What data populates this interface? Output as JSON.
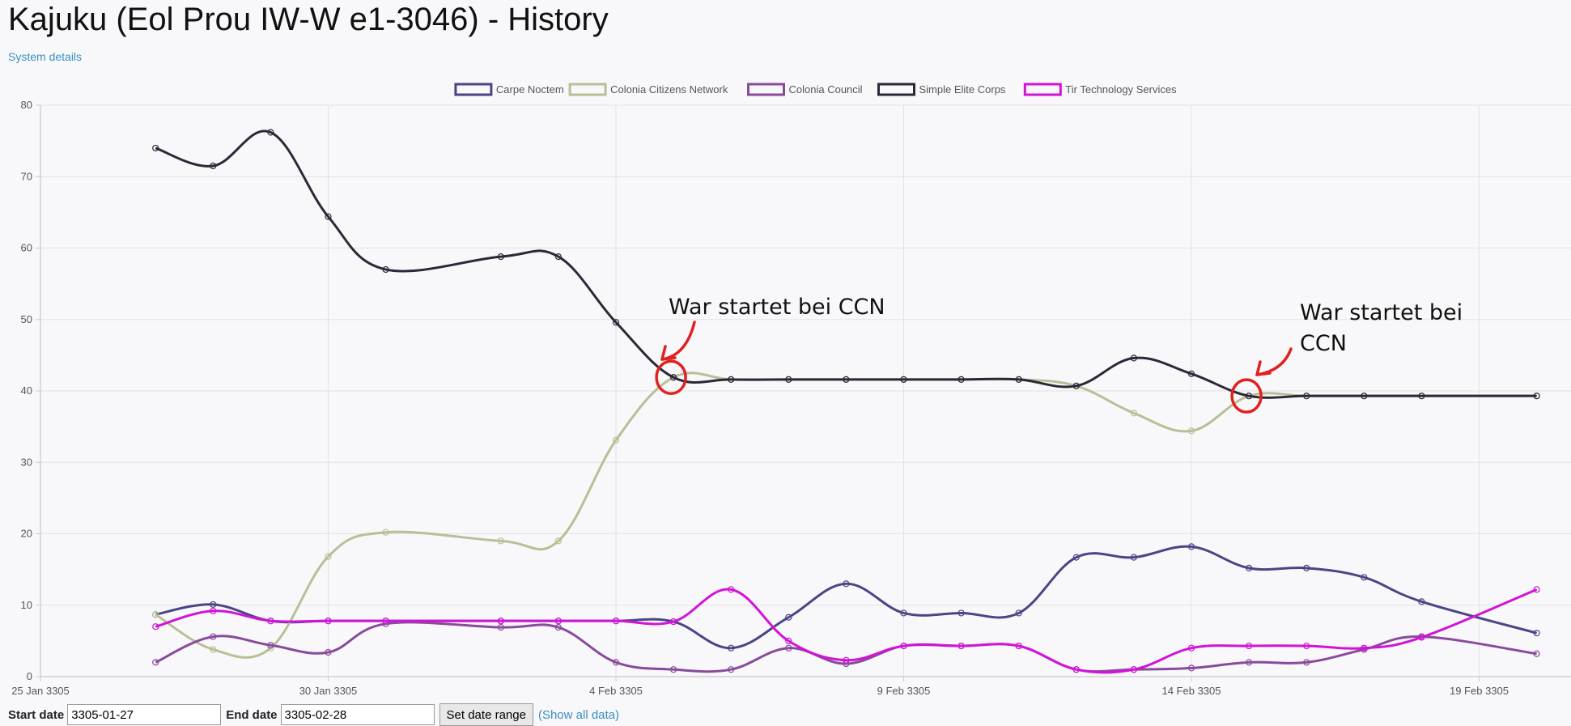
{
  "page": {
    "title": "Kajuku (Eol Prou IW-W e1-3046) - History",
    "system_details_link": "System details"
  },
  "controls": {
    "start_label": "Start date",
    "start_value": "3305-01-27",
    "end_label": "End date",
    "end_value": "3305-02-28",
    "set_button": "Set date range",
    "show_all": "(Show all data)"
  },
  "chart_data": {
    "type": "line",
    "x_axis_type": "date",
    "xlim": [
      "3305-01-25",
      "3305-02-21"
    ],
    "ylim": [
      0,
      80
    ],
    "x_ticks": [
      "25 Jan 3305",
      "30 Jan 3305",
      "4 Feb 3305",
      "9 Feb 3305",
      "14 Feb 3305",
      "19 Feb 3305"
    ],
    "x_tick_dates": [
      "3305-01-25",
      "3305-01-30",
      "3305-02-04",
      "3305-02-09",
      "3305-02-14",
      "3305-02-19"
    ],
    "y_ticks": [
      0,
      10,
      20,
      30,
      40,
      50,
      60,
      70,
      80
    ],
    "grid": true,
    "legend_position": "top",
    "dates": [
      "3305-01-27",
      "3305-01-28",
      "3305-01-29",
      "3305-01-30",
      "3305-01-31",
      "3305-02-02",
      "3305-02-03",
      "3305-02-04",
      "3305-02-05",
      "3305-02-06",
      "3305-02-07",
      "3305-02-08",
      "3305-02-09",
      "3305-02-10",
      "3305-02-11",
      "3305-02-12",
      "3305-02-13",
      "3305-02-14",
      "3305-02-15",
      "3305-02-16",
      "3305-02-17",
      "3305-02-18",
      "3305-02-20"
    ],
    "series": [
      {
        "name": "Carpe Noctem",
        "color": "#4b4585",
        "values": [
          8.7,
          10.1,
          7.8,
          7.8,
          7.8,
          7.8,
          7.8,
          7.8,
          7.7,
          4.0,
          8.3,
          13.0,
          8.9,
          8.9,
          8.9,
          16.7,
          16.7,
          18.2,
          15.2,
          15.2,
          13.9,
          10.5,
          6.1
        ]
      },
      {
        "name": "Colonia Citizens Network",
        "color": "#b8bf96",
        "values": [
          8.7,
          3.8,
          4.0,
          16.8,
          20.2,
          19.0,
          19.0,
          33.1,
          41.9,
          41.6,
          41.6,
          41.6,
          41.6,
          41.6,
          41.6,
          40.7,
          36.9,
          34.4,
          39.3,
          39.3,
          39.3,
          39.3,
          39.3
        ]
      },
      {
        "name": "Colonia Council",
        "color": "#8a4a9c",
        "values": [
          2.0,
          5.6,
          4.4,
          3.4,
          7.4,
          6.9,
          6.9,
          2.0,
          1.0,
          1.0,
          4.0,
          1.8,
          4.3,
          4.3,
          4.3,
          1.0,
          1.0,
          1.2,
          2.0,
          2.0,
          3.8,
          5.6,
          3.2
        ]
      },
      {
        "name": "Simple Elite Corps",
        "color": "#2b2838",
        "values": [
          74.0,
          71.5,
          76.2,
          64.4,
          57.0,
          58.8,
          58.8,
          49.6,
          41.9,
          41.6,
          41.6,
          41.6,
          41.6,
          41.6,
          41.6,
          40.7,
          44.6,
          42.4,
          39.3,
          39.3,
          39.3,
          39.3,
          39.3
        ]
      },
      {
        "name": "Tir Technology Services",
        "color": "#d114d6",
        "values": [
          7.0,
          9.2,
          7.8,
          7.8,
          7.8,
          7.8,
          7.8,
          7.8,
          7.7,
          12.2,
          5.0,
          2.3,
          4.3,
          4.3,
          4.3,
          1.0,
          1.0,
          4.0,
          4.3,
          4.3,
          4.0,
          5.5,
          12.2
        ]
      }
    ],
    "annotations": [
      {
        "text": "War startet bei CCN",
        "date": "3305-02-05",
        "value": 41.9
      },
      {
        "text": "War startet bei CCN",
        "date": "3305-02-15",
        "value": 39.3
      }
    ]
  }
}
